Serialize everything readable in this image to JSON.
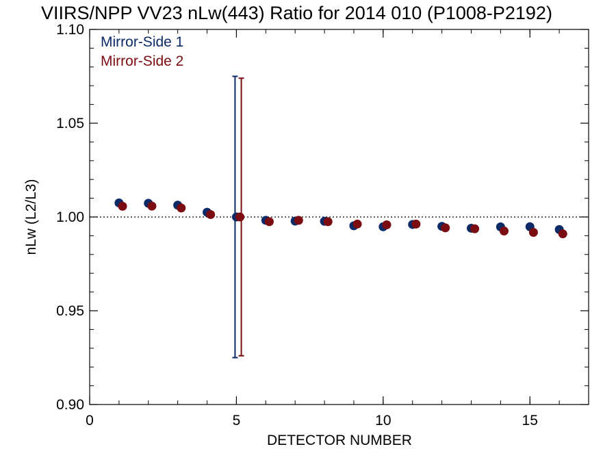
{
  "chart_data": {
    "type": "scatter",
    "title": "VIIRS/NPP VV23 nLw(443) Ratio for 2014 010 (P1008-P2192)",
    "xlabel": "DETECTOR NUMBER",
    "ylabel": "nLw (L2/L3)",
    "xlim": [
      0,
      17
    ],
    "ylim": [
      0.9,
      1.1
    ],
    "x_ticks": [
      {
        "value": 0,
        "label": "0"
      },
      {
        "value": 5,
        "label": "5"
      },
      {
        "value": 10,
        "label": "10"
      },
      {
        "value": 15,
        "label": "15"
      }
    ],
    "y_ticks": [
      {
        "value": 0.9,
        "label": "0.90"
      },
      {
        "value": 0.95,
        "label": "0.95"
      },
      {
        "value": 1.0,
        "label": "1.00"
      },
      {
        "value": 1.05,
        "label": "1.05"
      },
      {
        "value": 1.1,
        "label": "1.10"
      }
    ],
    "x_minor_step": 1,
    "y_minor_step": 0.01,
    "reference_line": {
      "y": 1.0,
      "style": "dotted"
    },
    "legend_position": "top-left",
    "series": [
      {
        "name": "Mirror-Side 1",
        "color": "#0b2a66",
        "x": [
          1,
          2,
          3,
          4,
          5,
          6,
          7,
          8,
          9,
          10,
          11,
          12,
          13,
          14,
          15,
          16
        ],
        "y": [
          1.0075,
          1.0073,
          1.0063,
          1.0025,
          1.0,
          0.9982,
          0.9978,
          0.9977,
          0.9953,
          0.9948,
          0.996,
          0.995,
          0.994,
          0.9947,
          0.9948,
          0.9933
        ],
        "error_bars": [
          {
            "x": 5,
            "low": 0.925,
            "high": 1.075
          }
        ]
      },
      {
        "name": "Mirror-Side 2",
        "color": "#7a0c12",
        "x": [
          1,
          2,
          3,
          4,
          5,
          6,
          7,
          8,
          9,
          10,
          11,
          12,
          13,
          14,
          15,
          16
        ],
        "y": [
          1.0057,
          1.0058,
          1.0048,
          1.0013,
          1.0,
          0.9975,
          0.9982,
          0.9975,
          0.9962,
          0.9958,
          0.9962,
          0.9942,
          0.9937,
          0.9925,
          0.9918,
          0.991
        ],
        "error_bars": [
          {
            "x": 5,
            "low": 0.926,
            "high": 1.074
          }
        ]
      }
    ]
  }
}
